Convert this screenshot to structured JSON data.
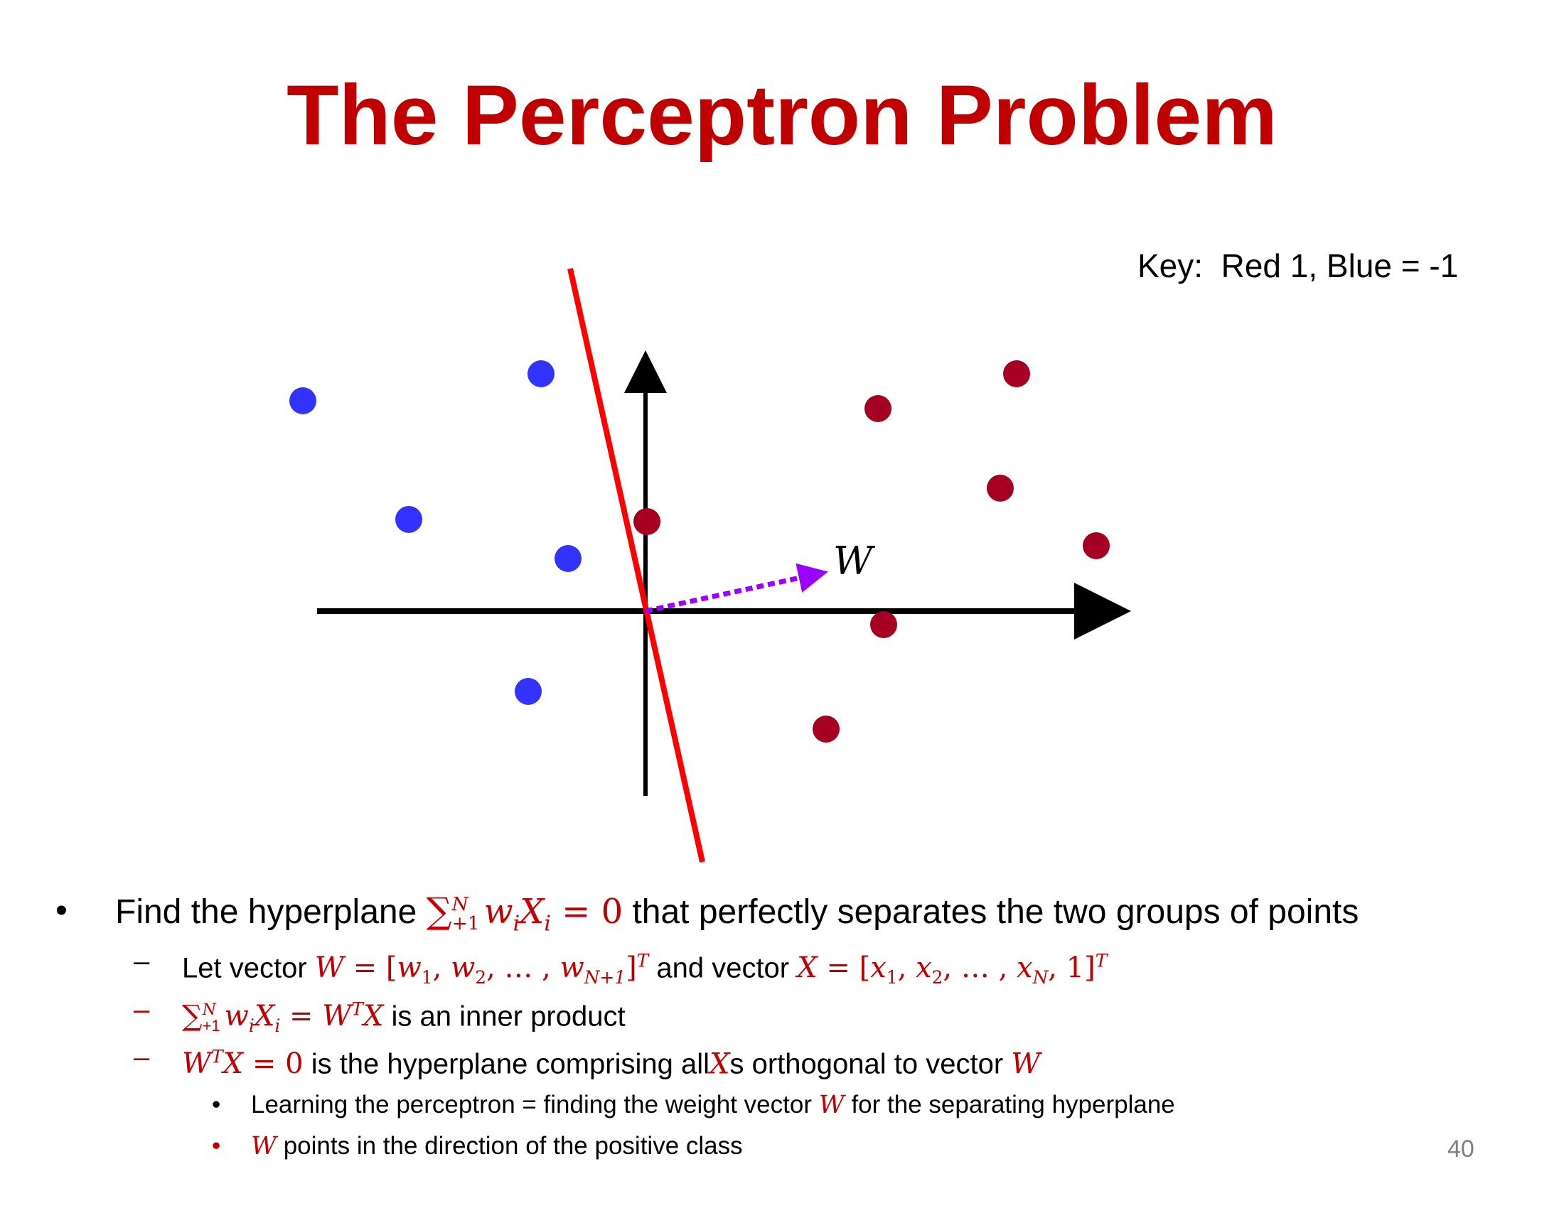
{
  "title": "The Perceptron Problem",
  "key": "Key:  Red 1, Blue = -1",
  "diagram": {
    "vector_label": "W",
    "colors": {
      "title": "#c00000",
      "positive_point": "#a50021",
      "negative_point": "#3333ff",
      "hyperplane": "#ff0000",
      "weight_vector": "#9900ff",
      "axes": "#000000",
      "math": "#c00000"
    }
  },
  "bullets": {
    "b1": {
      "marker": "•",
      "prefix": "Find the hyperplane",
      "suffix": "that perfectly separates the two groups of points"
    },
    "b2": {
      "marker": "–",
      "prefix": "Let vector",
      "middle": "and vector"
    },
    "b3": {
      "marker": "–",
      "suffix": "is an inner product"
    },
    "b4": {
      "marker": "–",
      "middle": "is the hyperplane comprising all",
      "s": "s orthogonal to vector"
    },
    "b5": {
      "marker": "•",
      "prefix": "Learning the perceptron = finding the weight vector",
      "suffix": "for the separating hyperplane"
    },
    "b6": {
      "marker": "•",
      "suffix": "points in the direction of the positive class"
    }
  },
  "page_number": "40"
}
